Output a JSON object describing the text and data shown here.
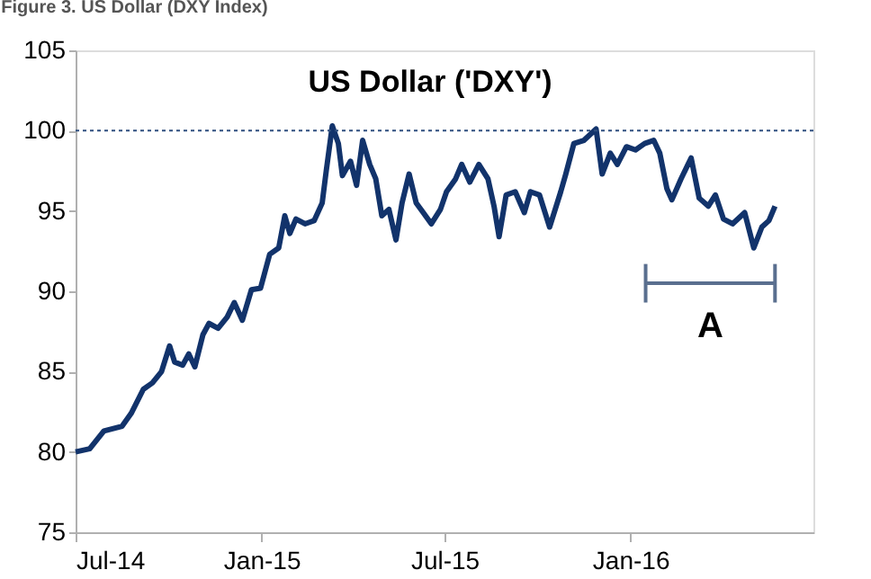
{
  "chart_data": {
    "type": "line",
    "title": "Figure 3. US Dollar (DXY Index)",
    "subtitle": "US Dollar ('DXY')",
    "x": [
      "2014-07-01",
      "2014-07-15",
      "2014-07-29",
      "2014-08-16",
      "2014-08-25",
      "2014-09-06",
      "2014-09-15",
      "2014-09-24",
      "2014-10-02",
      "2014-10-07",
      "2014-10-15",
      "2014-10-21",
      "2014-10-27",
      "2014-11-04",
      "2014-11-10",
      "2014-11-19",
      "2014-11-28",
      "2014-12-05",
      "2014-12-13",
      "2014-12-22",
      "2014-12-31",
      "2015-01-09",
      "2015-01-18",
      "2015-01-24",
      "2015-01-29",
      "2015-02-04",
      "2015-02-13",
      "2015-02-22",
      "2015-03-02",
      "2015-03-06",
      "2015-03-12",
      "2015-03-18",
      "2015-03-22",
      "2015-03-30",
      "2015-04-05",
      "2015-04-11",
      "2015-04-18",
      "2015-04-24",
      "2015-04-30",
      "2015-05-07",
      "2015-05-14",
      "2015-05-20",
      "2015-05-27",
      "2015-06-03",
      "2015-06-10",
      "2015-06-18",
      "2015-06-27",
      "2015-07-03",
      "2015-07-12",
      "2015-07-18",
      "2015-07-26",
      "2015-08-04",
      "2015-08-13",
      "2015-08-19",
      "2015-08-24",
      "2015-08-31",
      "2015-09-09",
      "2015-09-18",
      "2015-09-24",
      "2015-10-03",
      "2015-10-13",
      "2015-10-24",
      "2015-10-29",
      "2015-11-06",
      "2015-11-16",
      "2015-11-28",
      "2015-12-04",
      "2015-12-12",
      "2015-12-19",
      "2015-12-28",
      "2016-01-06",
      "2016-01-15",
      "2016-01-24",
      "2016-01-30",
      "2016-02-06",
      "2016-02-11",
      "2016-02-20",
      "2016-03-01",
      "2016-03-09",
      "2016-03-18",
      "2016-03-25",
      "2016-04-02",
      "2016-04-11",
      "2016-04-23",
      "2016-05-02",
      "2016-05-10",
      "2016-05-17",
      "2016-05-23"
    ],
    "series": [
      {
        "color": "#12336b",
        "values": [
          80.0,
          80.2,
          81.3,
          81.6,
          82.4,
          83.9,
          84.3,
          85.0,
          86.6,
          85.6,
          85.4,
          86.1,
          85.3,
          87.3,
          88.0,
          87.7,
          88.4,
          89.3,
          88.2,
          90.1,
          90.2,
          92.3,
          92.7,
          94.7,
          93.6,
          94.5,
          94.2,
          94.4,
          95.5,
          97.5,
          100.3,
          99.2,
          97.2,
          98.1,
          96.6,
          99.4,
          97.9,
          97.0,
          94.7,
          95.1,
          93.2,
          95.5,
          97.3,
          95.5,
          94.9,
          94.2,
          95.1,
          96.2,
          97.0,
          97.9,
          96.8,
          97.9,
          97.0,
          95.3,
          93.4,
          96.0,
          96.2,
          94.9,
          96.2,
          96.0,
          94.0,
          96.2,
          97.3,
          99.2,
          99.4,
          100.1,
          97.3,
          98.6,
          97.9,
          99.0,
          98.8,
          99.2,
          99.4,
          98.6,
          96.4,
          95.7,
          97.0,
          98.3,
          95.8,
          95.3,
          96.0,
          94.5,
          94.2,
          94.9,
          92.7,
          94.0,
          94.4,
          95.3
        ]
      },
      {
        "type": "line",
        "color": "#5a6f8f",
        "x": [
          "2016-01-16",
          "2016-05-23"
        ],
        "values": [
          90.5,
          90.5
        ],
        "errors": [
          1.2,
          1.2
        ]
      }
    ],
    "xlim": [
      "2014-07-01",
      "2016-06-30"
    ],
    "xticks": [
      {
        "value": "2014-07-01",
        "label": "Jul-14"
      },
      {
        "value": "2015-01-01",
        "label": "Jan-15"
      },
      {
        "value": "2015-07-01",
        "label": "Jul-15"
      },
      {
        "value": "2016-01-01",
        "label": "Jan-16"
      }
    ],
    "ylim": [
      75,
      105
    ],
    "yticks": [
      75,
      80,
      85,
      90,
      95,
      100,
      105
    ],
    "ref_lines": [
      {
        "axis": "y",
        "value": 100,
        "color": "#2f4f7f",
        "line_style": "dotted"
      }
    ],
    "annotations": [
      "A"
    ],
    "marker": "none",
    "line_style": "solid"
  }
}
